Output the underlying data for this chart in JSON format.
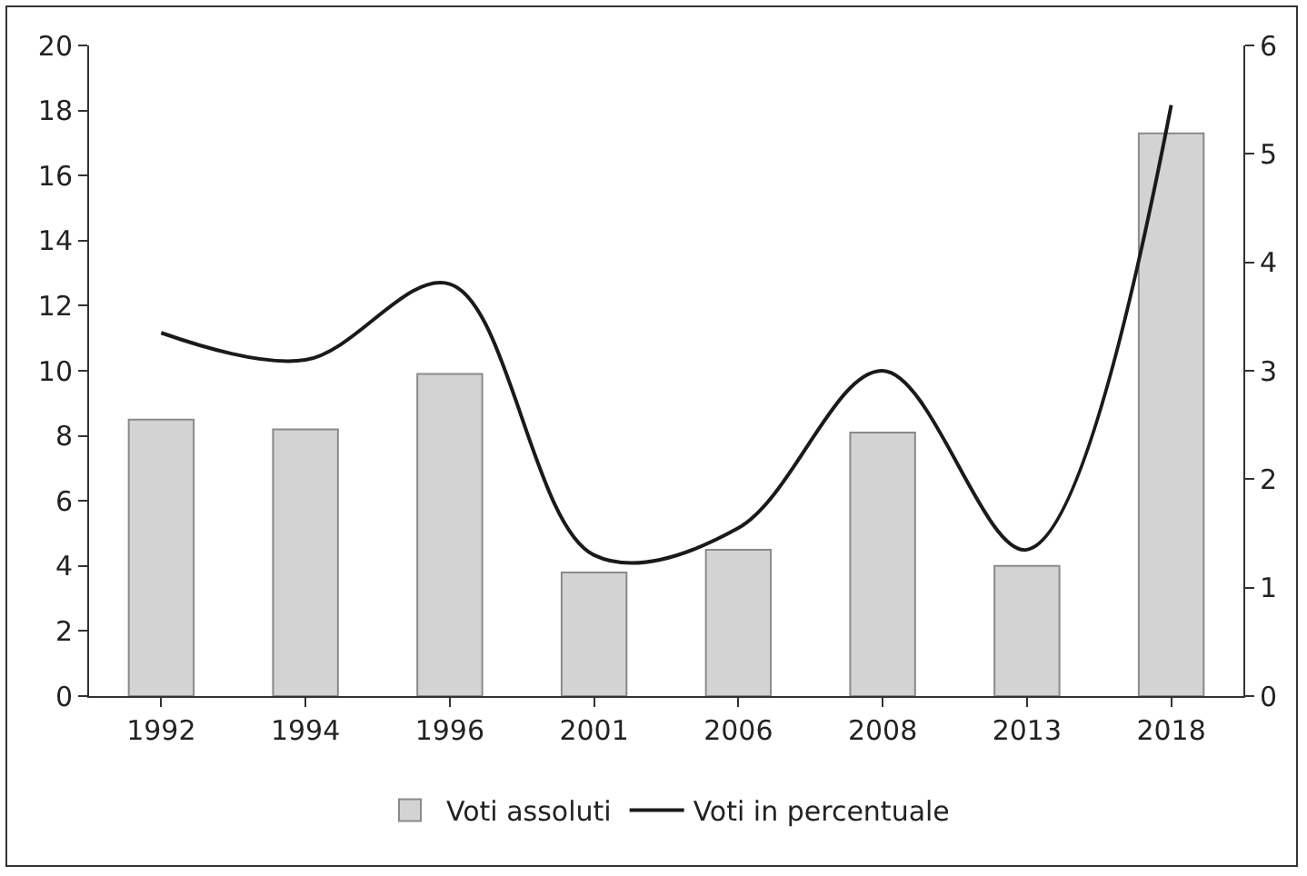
{
  "chart_data": {
    "type": "bar",
    "categories": [
      "1992",
      "1994",
      "1996",
      "2001",
      "2006",
      "2008",
      "2013",
      "2018"
    ],
    "series": [
      {
        "name": "Voti assoluti",
        "color": "#d3d3d3",
        "values": [
          8.5,
          8.2,
          9.9,
          3.8,
          4.5,
          8.1,
          4.0,
          17.3
        ]
      },
      {
        "name": "Voti in percentuale",
        "type": "line",
        "axis": "y2",
        "color": "#1a1a1a",
        "values": [
          3.35,
          3.1,
          3.8,
          1.3,
          1.55,
          3.0,
          1.35,
          5.45
        ]
      }
    ],
    "ylim": [
      0,
      20
    ],
    "yticks": [
      0,
      2,
      4,
      6,
      8,
      10,
      12,
      14,
      16,
      18,
      20
    ],
    "y2lim": [
      0,
      6
    ],
    "y2ticks": [
      0,
      1,
      2,
      3,
      4,
      5,
      6
    ],
    "grid": false,
    "legend": "bottom",
    "marker": "none",
    "line_style": "solid"
  }
}
